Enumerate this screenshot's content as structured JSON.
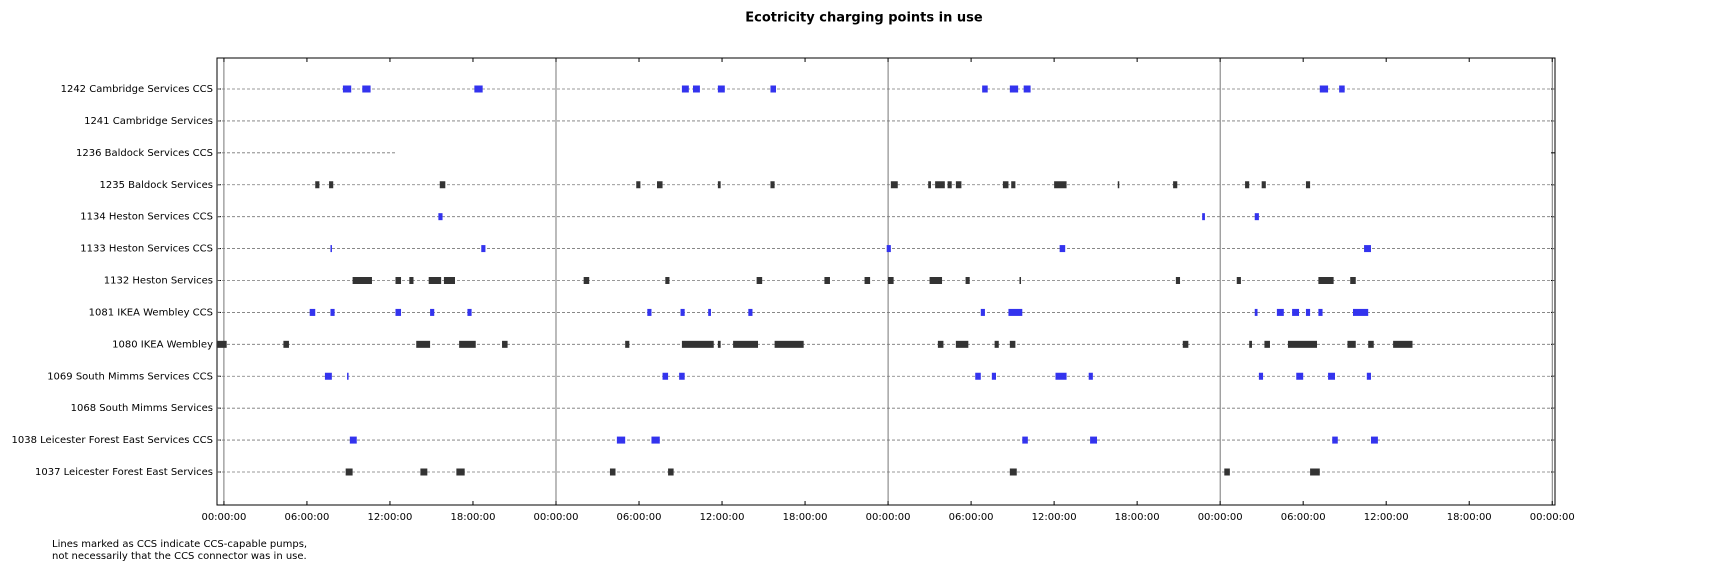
{
  "chart_data": {
    "type": "timeline",
    "title": "Ecotricity charging points in use",
    "note": [
      "Lines marked as CCS indicate CCS-capable pumps,",
      "not necessarily that the CCS connector was in use."
    ],
    "xlim": [
      -0.5,
      96.2
    ],
    "xticks": [
      {
        "value": 0,
        "label": "00:00:00"
      },
      {
        "value": 6,
        "label": "06:00:00"
      },
      {
        "value": 12,
        "label": "12:00:00"
      },
      {
        "value": 18,
        "label": "18:00:00"
      },
      {
        "value": 24,
        "label": "00:00:00"
      },
      {
        "value": 30,
        "label": "06:00:00"
      },
      {
        "value": 36,
        "label": "12:00:00"
      },
      {
        "value": 42,
        "label": "18:00:00"
      },
      {
        "value": 48,
        "label": "00:00:00"
      },
      {
        "value": 54,
        "label": "06:00:00"
      },
      {
        "value": 60,
        "label": "12:00:00"
      },
      {
        "value": 66,
        "label": "18:00:00"
      },
      {
        "value": 72,
        "label": "00:00:00"
      },
      {
        "value": 78,
        "label": "06:00:00"
      },
      {
        "value": 84,
        "label": "12:00:00"
      },
      {
        "value": 90,
        "label": "18:00:00"
      },
      {
        "value": 96,
        "label": "00:00:00"
      }
    ],
    "xgrid": [
      0,
      24,
      48,
      72,
      96
    ],
    "series": [
      {
        "name": "1242 Cambridge Services CCS",
        "color": "#3333ee",
        "span": [
          -0.5,
          96.2
        ],
        "values": [
          [
            8.6,
            9.2
          ],
          [
            10.0,
            10.6
          ],
          [
            18.1,
            18.7
          ],
          [
            33.1,
            33.6
          ],
          [
            33.9,
            34.4
          ],
          [
            35.7,
            36.2
          ],
          [
            39.5,
            39.9
          ],
          [
            54.8,
            55.2
          ],
          [
            56.8,
            57.4
          ],
          [
            57.8,
            58.3
          ],
          [
            79.2,
            79.8
          ],
          [
            80.6,
            81.0
          ]
        ]
      },
      {
        "name": "1241 Cambridge Services",
        "color": "#333333",
        "span": [
          -0.5,
          96.2
        ],
        "values": []
      },
      {
        "name": "1236 Baldock Services CCS",
        "color": "#3333ee",
        "span": [
          -0.5,
          12.5
        ],
        "values": []
      },
      {
        "name": "1235 Baldock Services",
        "color": "#333333",
        "span": [
          -0.5,
          96.2
        ],
        "values": [
          [
            6.6,
            6.9
          ],
          [
            7.6,
            7.9
          ],
          [
            15.6,
            16.0
          ],
          [
            29.8,
            30.1
          ],
          [
            31.3,
            31.7
          ],
          [
            35.7,
            35.9
          ],
          [
            39.5,
            39.8
          ],
          [
            48.2,
            48.7
          ],
          [
            50.9,
            51.1
          ],
          [
            51.4,
            52.1
          ],
          [
            52.3,
            52.6
          ],
          [
            52.9,
            53.3
          ],
          [
            56.3,
            56.7
          ],
          [
            56.9,
            57.2
          ],
          [
            60.0,
            60.9
          ],
          [
            64.6,
            64.7
          ],
          [
            68.6,
            68.9
          ],
          [
            73.8,
            74.1
          ],
          [
            75.0,
            75.3
          ],
          [
            78.2,
            78.5
          ]
        ]
      },
      {
        "name": "1134 Heston Services CCS",
        "color": "#3333ee",
        "span": [
          -0.5,
          96.2
        ],
        "values": [
          [
            15.5,
            15.8
          ],
          [
            70.7,
            70.9
          ],
          [
            74.5,
            74.8
          ]
        ]
      },
      {
        "name": "1133 Heston Services CCS",
        "color": "#3333ee",
        "span": [
          -0.5,
          96.2
        ],
        "values": [
          [
            7.7,
            7.8
          ],
          [
            18.6,
            18.9
          ],
          [
            47.9,
            48.2
          ],
          [
            60.4,
            60.8
          ],
          [
            82.4,
            82.9
          ]
        ]
      },
      {
        "name": "1132 Heston Services",
        "color": "#333333",
        "span": [
          -0.5,
          96.2
        ],
        "values": [
          [
            9.3,
            10.7
          ],
          [
            12.4,
            12.8
          ],
          [
            13.4,
            13.7
          ],
          [
            14.8,
            15.7
          ],
          [
            15.9,
            16.7
          ],
          [
            26.0,
            26.4
          ],
          [
            31.9,
            32.2
          ],
          [
            38.5,
            38.9
          ],
          [
            43.4,
            43.8
          ],
          [
            46.3,
            46.7
          ],
          [
            48.0,
            48.4
          ],
          [
            51.0,
            51.9
          ],
          [
            53.6,
            53.9
          ],
          [
            57.5,
            57.6
          ],
          [
            68.8,
            69.1
          ],
          [
            73.2,
            73.5
          ],
          [
            79.1,
            80.2
          ],
          [
            81.4,
            81.8
          ]
        ]
      },
      {
        "name": "1081 IKEA Wembley CCS",
        "color": "#3333ee",
        "span": [
          -0.5,
          96.2
        ],
        "values": [
          [
            6.2,
            6.6
          ],
          [
            7.7,
            8.0
          ],
          [
            12.4,
            12.8
          ],
          [
            14.9,
            15.2
          ],
          [
            17.6,
            17.9
          ],
          [
            30.6,
            30.9
          ],
          [
            33.0,
            33.3
          ],
          [
            35.0,
            35.2
          ],
          [
            37.9,
            38.2
          ],
          [
            54.7,
            55.0
          ],
          [
            56.7,
            57.7
          ],
          [
            74.5,
            74.7
          ],
          [
            76.1,
            76.6
          ],
          [
            77.2,
            77.7
          ],
          [
            78.2,
            78.5
          ],
          [
            79.1,
            79.4
          ],
          [
            81.6,
            82.7
          ]
        ]
      },
      {
        "name": "1080 IKEA Wembley",
        "color": "#333333",
        "span": [
          -0.5,
          96.2
        ],
        "values": [
          [
            -0.5,
            0.2
          ],
          [
            4.3,
            4.7
          ],
          [
            13.9,
            14.9
          ],
          [
            17.0,
            18.2
          ],
          [
            20.1,
            20.5
          ],
          [
            29.0,
            29.3
          ],
          [
            33.1,
            35.4
          ],
          [
            35.7,
            35.9
          ],
          [
            36.8,
            38.6
          ],
          [
            39.8,
            41.9
          ],
          [
            51.6,
            52.0
          ],
          [
            52.9,
            53.8
          ],
          [
            55.7,
            56.0
          ],
          [
            56.8,
            57.2
          ],
          [
            69.3,
            69.7
          ],
          [
            74.1,
            74.3
          ],
          [
            75.2,
            75.6
          ],
          [
            76.9,
            79.0
          ],
          [
            81.2,
            81.8
          ],
          [
            82.7,
            83.1
          ],
          [
            84.5,
            85.9
          ]
        ]
      },
      {
        "name": "1069 South Mimms Services CCS",
        "color": "#3333ee",
        "span": [
          -0.5,
          96.2
        ],
        "values": [
          [
            7.3,
            7.8
          ],
          [
            8.9,
            9.0
          ],
          [
            31.7,
            32.1
          ],
          [
            32.9,
            33.3
          ],
          [
            54.3,
            54.7
          ],
          [
            55.5,
            55.8
          ],
          [
            60.1,
            60.9
          ],
          [
            62.5,
            62.8
          ],
          [
            74.8,
            75.1
          ],
          [
            77.5,
            78.0
          ],
          [
            79.8,
            80.3
          ],
          [
            82.6,
            82.9
          ]
        ]
      },
      {
        "name": "1068 South Mimms Services",
        "color": "#333333",
        "span": [
          -0.5,
          96.2
        ],
        "values": []
      },
      {
        "name": "1038 Leicester Forest East Services CCS",
        "color": "#3333ee",
        "span": [
          -0.5,
          96.2
        ],
        "values": [
          [
            9.1,
            9.6
          ],
          [
            28.4,
            29.0
          ],
          [
            30.9,
            31.5
          ],
          [
            57.7,
            58.1
          ],
          [
            62.6,
            63.1
          ],
          [
            80.1,
            80.5
          ],
          [
            82.9,
            83.4
          ]
        ]
      },
      {
        "name": "1037 Leicester Forest East Services",
        "color": "#333333",
        "span": [
          -0.5,
          96.2
        ],
        "values": [
          [
            8.8,
            9.3
          ],
          [
            14.2,
            14.7
          ],
          [
            16.8,
            17.4
          ],
          [
            27.9,
            28.3
          ],
          [
            32.1,
            32.5
          ],
          [
            56.8,
            57.3
          ],
          [
            72.3,
            72.7
          ],
          [
            78.5,
            79.2
          ]
        ]
      }
    ]
  }
}
